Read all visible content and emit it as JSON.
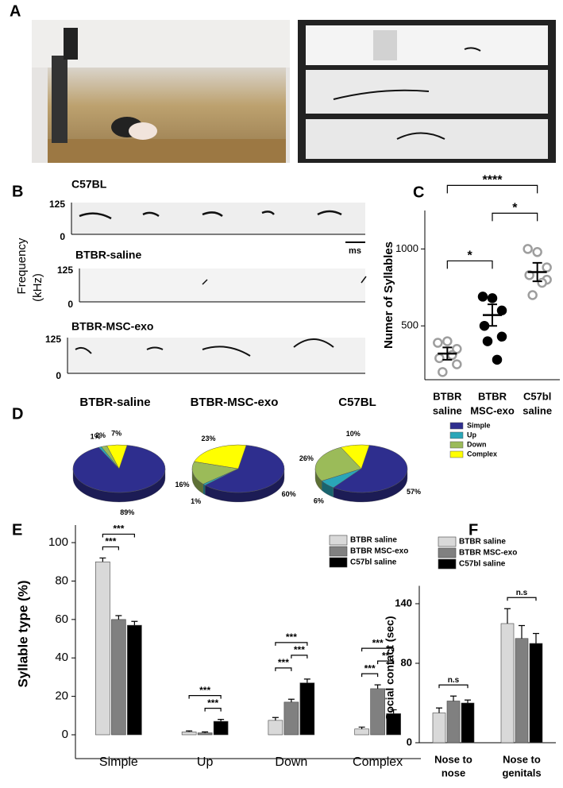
{
  "panel_labels": [
    "A",
    "B",
    "C",
    "D",
    "E",
    "F"
  ],
  "panel_b": {
    "ylabel": [
      "Frequency",
      "(kHz)"
    ],
    "traces": [
      "C57BL",
      "BTBR-saline",
      "BTBR-MSC-exo"
    ],
    "freq_labels": [
      "125",
      "0"
    ],
    "scale_label": "ms"
  },
  "chart_data": [
    {
      "type": "dot",
      "ylabel": "Numer of Syllables",
      "categories": [
        [
          "BTBR",
          "saline"
        ],
        [
          "BTBR",
          "MSC-exo"
        ],
        [
          "C57bl",
          "saline"
        ]
      ],
      "points": [
        [
          390,
          400,
          350,
          290,
          250,
          200,
          310
        ],
        [
          690,
          680,
          600,
          500,
          430,
          400,
          280
        ],
        [
          1000,
          980,
          880,
          830,
          800,
          700,
          780
        ]
      ],
      "mean": [
        320,
        570,
        850
      ],
      "sem": [
        40,
        70,
        60
      ],
      "colors": [
        "#9e9e9e",
        "#000000",
        "#9e9e9e"
      ],
      "filled": [
        false,
        true,
        false
      ],
      "ylim": [
        150,
        1250
      ],
      "yticks": [
        500,
        1000
      ],
      "comparisons": [
        {
          "pair": [
            0,
            1
          ],
          "label": "*"
        },
        {
          "pair": [
            1,
            2
          ],
          "label": "*"
        },
        {
          "pair": [
            0,
            2
          ],
          "label": "****"
        }
      ]
    },
    {
      "type": "pie",
      "title": "BTBR-saline",
      "categories": [
        "Simple",
        "Up",
        "Down",
        "Complex"
      ],
      "colors": [
        "#2e2e8e",
        "#2aa6b8",
        "#9bbb59",
        "#ffff00"
      ],
      "values": [
        89,
        1,
        2,
        7
      ],
      "value_labels": [
        "89%",
        "1%",
        "2%",
        "7%"
      ]
    },
    {
      "type": "pie",
      "title": "BTBR-MSC-exo",
      "categories": [
        "Simple",
        "Up",
        "Down",
        "Complex"
      ],
      "colors": [
        "#2e2e8e",
        "#2aa6b8",
        "#9bbb59",
        "#ffff00"
      ],
      "values": [
        60,
        1,
        16,
        23
      ],
      "value_labels": [
        "60%",
        "1%",
        "16%",
        "23%"
      ]
    },
    {
      "type": "pie",
      "title": "C57BL",
      "categories": [
        "Simple",
        "Up",
        "Down",
        "Complex"
      ],
      "colors": [
        "#2e2e8e",
        "#2aa6b8",
        "#9bbb59",
        "#ffff00"
      ],
      "values": [
        57,
        6,
        26,
        10
      ],
      "value_labels": [
        "57%",
        "6%",
        "26%",
        "10%"
      ]
    },
    {
      "type": "bar",
      "ylabel": "Syllable type (%)",
      "categories": [
        "Simple",
        "Up",
        "Down",
        "Complex"
      ],
      "series": [
        {
          "name": "BTBR saline",
          "color": "#d9d9d9",
          "values": [
            90,
            1.5,
            7.5,
            3
          ],
          "errors": [
            2,
            0.5,
            1.5,
            1
          ]
        },
        {
          "name": "BTBR MSC-exo",
          "color": "#808080",
          "values": [
            60,
            1,
            17,
            24
          ],
          "errors": [
            2,
            0.5,
            1.5,
            2
          ]
        },
        {
          "name": "C57bl saline",
          "color": "#000000",
          "values": [
            57,
            7,
            27,
            11
          ],
          "errors": [
            2,
            1,
            2,
            2
          ]
        }
      ],
      "ylim": [
        0,
        105
      ],
      "yticks": [
        0,
        20,
        40,
        60,
        80,
        100
      ],
      "comparisons": [
        {
          "category": 0,
          "pair": [
            0,
            1
          ],
          "label": "***"
        },
        {
          "category": 0,
          "pair": [
            0,
            2
          ],
          "label": "***"
        },
        {
          "category": 1,
          "pair": [
            1,
            2
          ],
          "label": "***"
        },
        {
          "category": 1,
          "pair": [
            0,
            2
          ],
          "label": "***"
        },
        {
          "category": 2,
          "pair": [
            0,
            1
          ],
          "label": "***"
        },
        {
          "category": 2,
          "pair": [
            1,
            2
          ],
          "label": "***"
        },
        {
          "category": 2,
          "pair": [
            0,
            2
          ],
          "label": "***"
        },
        {
          "category": 3,
          "pair": [
            0,
            1
          ],
          "label": "***"
        },
        {
          "category": 3,
          "pair": [
            1,
            2
          ],
          "label": "**"
        },
        {
          "category": 3,
          "pair": [
            0,
            2
          ],
          "label": "***"
        }
      ]
    },
    {
      "type": "bar",
      "ylabel": "Social contact (sec)",
      "categories": [
        [
          "Nose to",
          "nose"
        ],
        [
          "Nose to",
          "genitals"
        ]
      ],
      "series": [
        {
          "name": "BTBR saline",
          "color": "#d9d9d9",
          "values": [
            30,
            120
          ],
          "errors": [
            5,
            15
          ]
        },
        {
          "name": "BTBR MSC-exo",
          "color": "#808080",
          "values": [
            42,
            105
          ],
          "errors": [
            5,
            13
          ]
        },
        {
          "name": "C57bl saline",
          "color": "#000000",
          "values": [
            40,
            100
          ],
          "errors": [
            3,
            10
          ]
        }
      ],
      "ylim": [
        0,
        150
      ],
      "yticks": [
        0,
        80,
        140
      ],
      "comparisons": [
        {
          "category": 0,
          "pair": [
            0,
            2
          ],
          "label": "n.s"
        },
        {
          "category": 1,
          "pair": [
            0,
            2
          ],
          "label": "n.s"
        }
      ]
    }
  ]
}
